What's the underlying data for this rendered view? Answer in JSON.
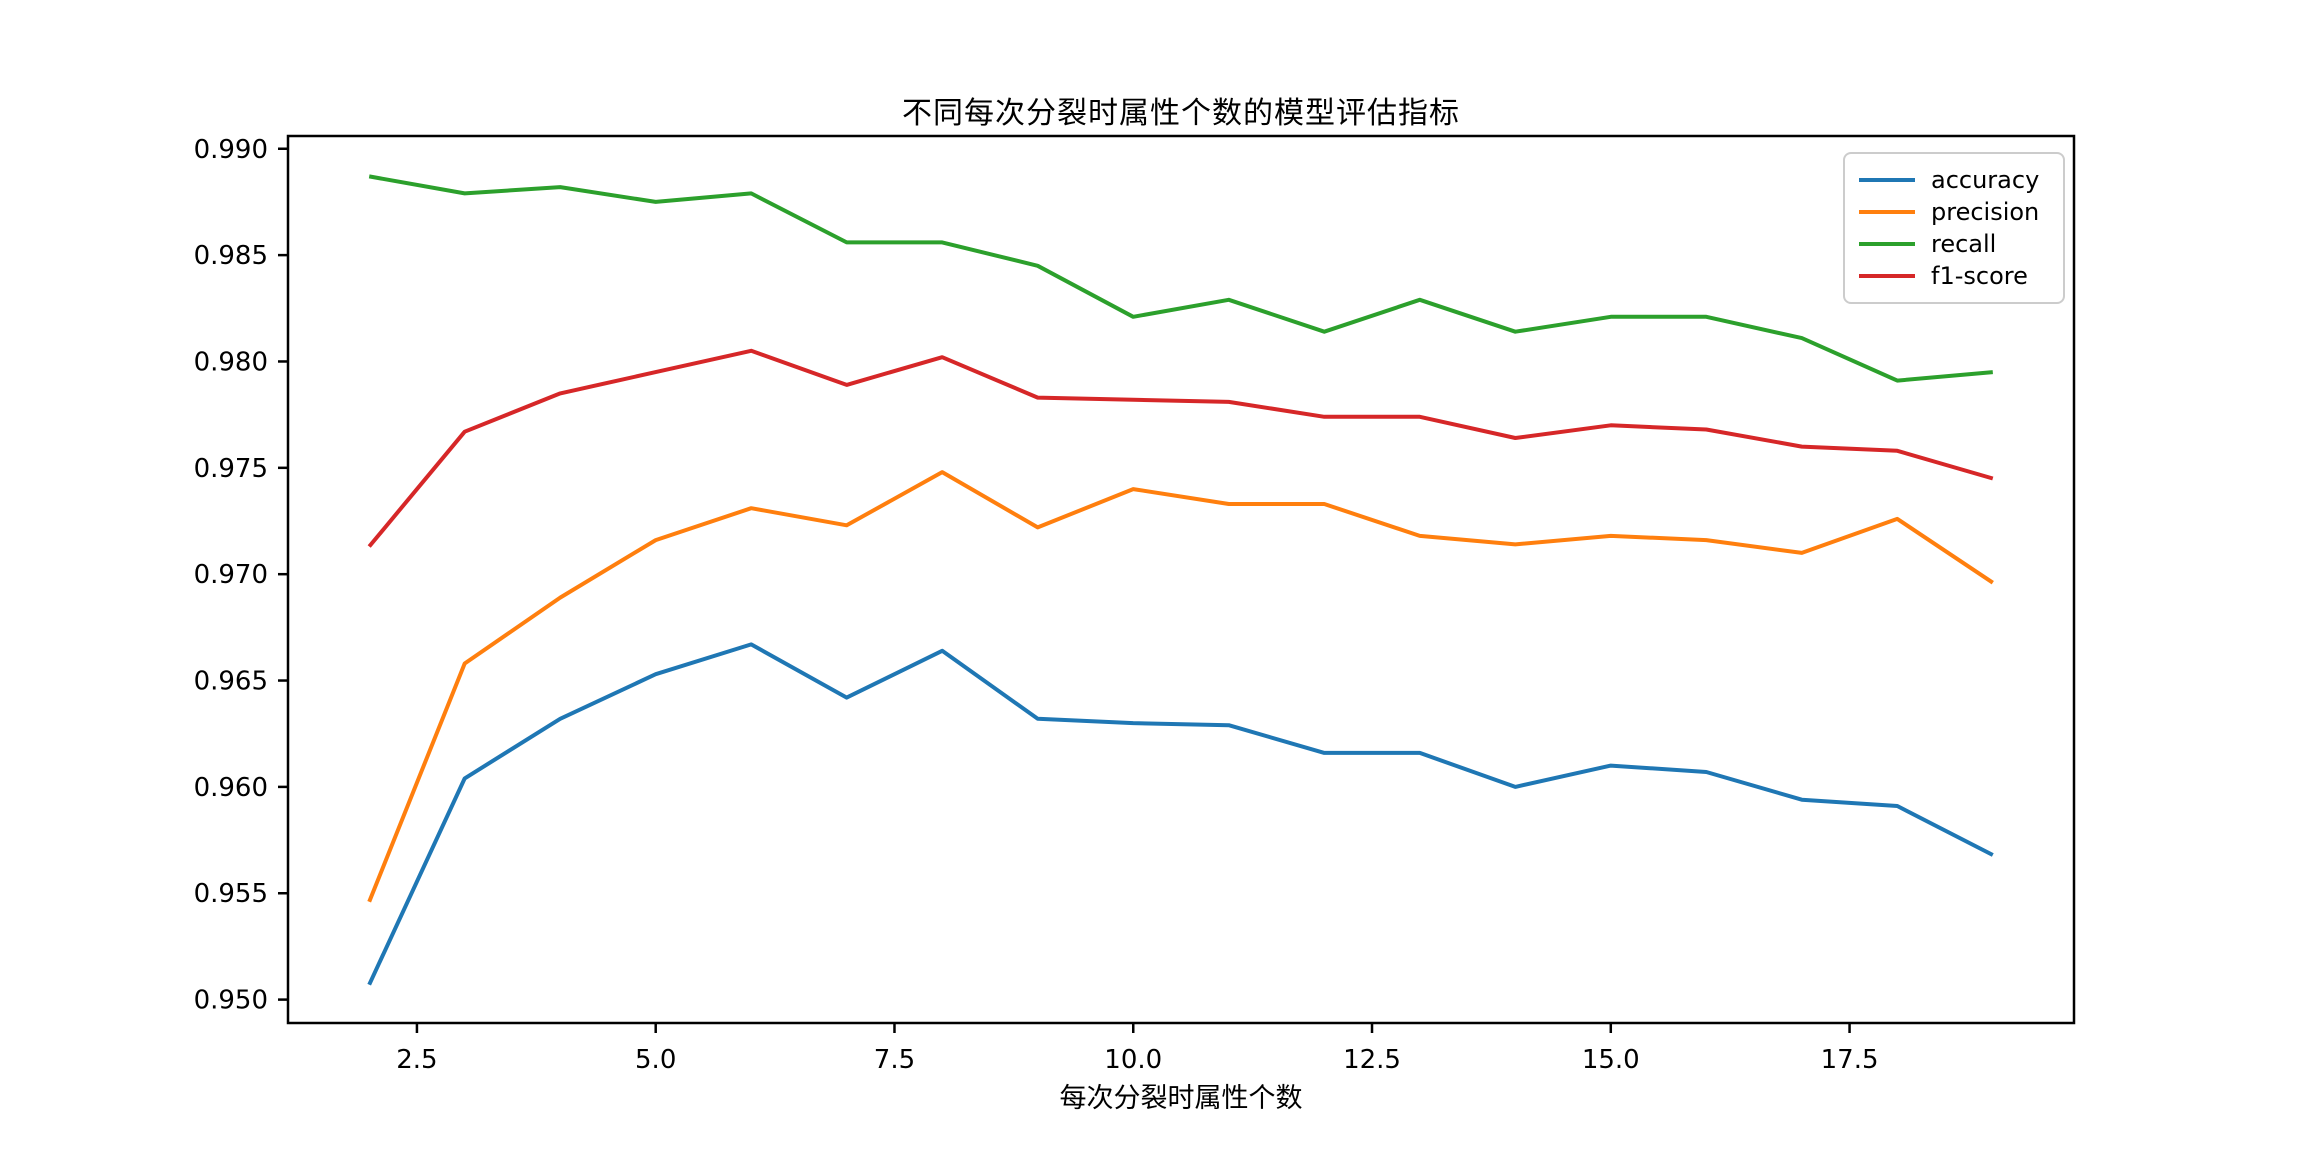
{
  "chart_data": {
    "type": "line",
    "title": "不同每次分裂时属性个数的模型评估指标",
    "xlabel": "每次分裂时属性个数",
    "ylabel": "",
    "x": [
      2,
      3,
      4,
      5,
      6,
      7,
      8,
      9,
      10,
      11,
      12,
      13,
      14,
      15,
      16,
      17,
      18,
      19
    ],
    "series": [
      {
        "name": "accuracy",
        "color": "#1f77b4",
        "values": [
          0.9507,
          0.9604,
          0.9632,
          0.9653,
          0.9667,
          0.9642,
          0.9664,
          0.9632,
          0.963,
          0.9629,
          0.9616,
          0.9616,
          0.96,
          0.961,
          0.9607,
          0.9594,
          0.9591,
          0.9568
        ]
      },
      {
        "name": "precision",
        "color": "#ff7f0e",
        "values": [
          0.9546,
          0.9658,
          0.9689,
          0.9716,
          0.9731,
          0.9723,
          0.9748,
          0.9722,
          0.974,
          0.9733,
          0.9733,
          0.9718,
          0.9714,
          0.9718,
          0.9716,
          0.971,
          0.9726,
          0.9696
        ]
      },
      {
        "name": "recall",
        "color": "#2ca02c",
        "values": [
          0.9887,
          0.9879,
          0.9882,
          0.9875,
          0.9879,
          0.9856,
          0.9856,
          0.9845,
          0.9821,
          0.9829,
          0.9814,
          0.9829,
          0.9814,
          0.9821,
          0.9821,
          0.9811,
          0.9791,
          0.9795
        ]
      },
      {
        "name": "f1-score",
        "color": "#d62728",
        "values": [
          0.9713,
          0.9767,
          0.9785,
          0.9795,
          0.9805,
          0.9789,
          0.9802,
          0.9783,
          0.9782,
          0.9781,
          0.9774,
          0.9774,
          0.9764,
          0.977,
          0.9768,
          0.976,
          0.9758,
          0.9745
        ]
      }
    ],
    "xticks": {
      "values": [
        2.5,
        5.0,
        7.5,
        10.0,
        12.5,
        15.0,
        17.5
      ],
      "labels": [
        "2.5",
        "5.0",
        "7.5",
        "10.0",
        "12.5",
        "15.0",
        "17.5"
      ]
    },
    "yticks": {
      "values": [
        0.95,
        0.955,
        0.96,
        0.965,
        0.97,
        0.975,
        0.98,
        0.985,
        0.99
      ],
      "labels": [
        "0.950",
        "0.955",
        "0.960",
        "0.965",
        "0.970",
        "0.975",
        "0.980",
        "0.985",
        "0.990"
      ]
    },
    "xlim": [
      1.15,
      19.85
    ],
    "ylim": [
      0.9489,
      0.9906
    ],
    "grid": false,
    "legend_position": "upper right",
    "axis_color": "#000000",
    "background_color": "#ffffff"
  }
}
